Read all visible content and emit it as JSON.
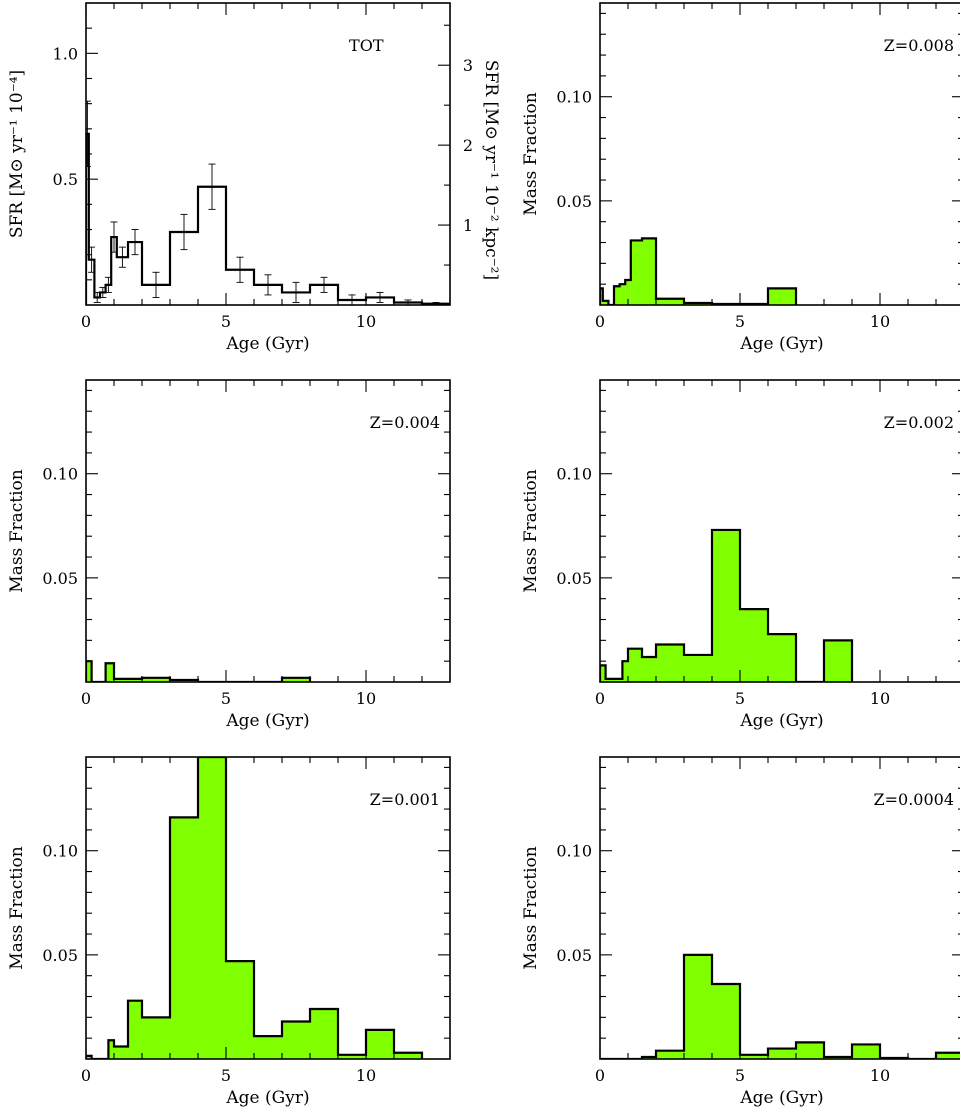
{
  "colors": {
    "fill": "#80ff00",
    "line": "#000000"
  },
  "chart_data": [
    {
      "id": "TOT",
      "type": "bar",
      "label": "TOT",
      "xlabel": "Age (Gyr)",
      "ylabel": "SFR [M⊙ yr⁻¹ 10⁻⁴]",
      "ylabel_right": "SFR [M⊙ yr⁻¹ 10⁻² kpc⁻²]",
      "xlim": [
        0,
        13
      ],
      "ylim": [
        0,
        1.2
      ],
      "xticks": [
        0,
        5,
        10
      ],
      "yticks": [
        0.5,
        1.0
      ],
      "yticklabels": [
        "0.5",
        "1.0"
      ],
      "right_ticks": [
        1,
        2,
        3
      ],
      "right_scale": 0.3176,
      "filled": false,
      "bins": [
        {
          "x0": 0.0,
          "x1": 0.1,
          "v": 0.68,
          "e": 0.13
        },
        {
          "x0": 0.1,
          "x1": 0.3,
          "v": 0.18,
          "e": 0.05
        },
        {
          "x0": 0.3,
          "x1": 0.5,
          "v": 0.03,
          "e": 0.02
        },
        {
          "x0": 0.5,
          "x1": 0.7,
          "v": 0.05,
          "e": 0.02
        },
        {
          "x0": 0.7,
          "x1": 0.9,
          "v": 0.08,
          "e": 0.03
        },
        {
          "x0": 0.9,
          "x1": 1.1,
          "v": 0.27,
          "e": 0.06
        },
        {
          "x0": 1.1,
          "x1": 1.5,
          "v": 0.19,
          "e": 0.04
        },
        {
          "x0": 1.5,
          "x1": 2.0,
          "v": 0.25,
          "e": 0.05
        },
        {
          "x0": 2.0,
          "x1": 3.0,
          "v": 0.08,
          "e": 0.05
        },
        {
          "x0": 3.0,
          "x1": 4.0,
          "v": 0.29,
          "e": 0.07
        },
        {
          "x0": 4.0,
          "x1": 5.0,
          "v": 0.47,
          "e": 0.09
        },
        {
          "x0": 5.0,
          "x1": 6.0,
          "v": 0.14,
          "e": 0.05
        },
        {
          "x0": 6.0,
          "x1": 7.0,
          "v": 0.08,
          "e": 0.04
        },
        {
          "x0": 7.0,
          "x1": 8.0,
          "v": 0.05,
          "e": 0.04
        },
        {
          "x0": 8.0,
          "x1": 9.0,
          "v": 0.08,
          "e": 0.03
        },
        {
          "x0": 9.0,
          "x1": 10.0,
          "v": 0.02,
          "e": 0.02
        },
        {
          "x0": 10.0,
          "x1": 11.0,
          "v": 0.03,
          "e": 0.02
        },
        {
          "x0": 11.0,
          "x1": 12.0,
          "v": 0.01,
          "e": 0.01
        },
        {
          "x0": 12.0,
          "x1": 13.0,
          "v": 0.005,
          "e": 0.005
        }
      ]
    },
    {
      "id": "z0008",
      "type": "bar",
      "label": "Z=0.008",
      "xlabel": "Age (Gyr)",
      "ylabel": "Mass Fraction",
      "xlim": [
        0,
        13
      ],
      "ylim": [
        0,
        0.145
      ],
      "xticks": [
        0,
        5,
        10
      ],
      "yticks": [
        0.05,
        0.1
      ],
      "yticklabels": [
        "0.05",
        "0.10"
      ],
      "filled": true,
      "bins": [
        {
          "x0": 0.0,
          "x1": 0.1,
          "v": 0.008
        },
        {
          "x0": 0.1,
          "x1": 0.3,
          "v": 0.002
        },
        {
          "x0": 0.3,
          "x1": 0.5,
          "v": 0.0
        },
        {
          "x0": 0.5,
          "x1": 0.7,
          "v": 0.009
        },
        {
          "x0": 0.7,
          "x1": 0.9,
          "v": 0.01
        },
        {
          "x0": 0.9,
          "x1": 1.1,
          "v": 0.012
        },
        {
          "x0": 1.1,
          "x1": 1.5,
          "v": 0.031
        },
        {
          "x0": 1.5,
          "x1": 2.0,
          "v": 0.032
        },
        {
          "x0": 2.0,
          "x1": 3.0,
          "v": 0.003
        },
        {
          "x0": 3.0,
          "x1": 4.0,
          "v": 0.001
        },
        {
          "x0": 4.0,
          "x1": 5.0,
          "v": 0.0005
        },
        {
          "x0": 5.0,
          "x1": 6.0,
          "v": 0.0005
        },
        {
          "x0": 6.0,
          "x1": 7.0,
          "v": 0.008
        }
      ]
    },
    {
      "id": "z0004",
      "type": "bar",
      "label": "Z=0.004",
      "xlabel": "Age (Gyr)",
      "ylabel": "Mass Fraction",
      "xlim": [
        0,
        13
      ],
      "ylim": [
        0,
        0.145
      ],
      "xticks": [
        0,
        5,
        10
      ],
      "yticks": [
        0.05,
        0.1
      ],
      "yticklabels": [
        "0.05",
        "0.10"
      ],
      "filled": true,
      "bins": [
        {
          "x0": 0.0,
          "x1": 0.2,
          "v": 0.01
        },
        {
          "x0": 0.2,
          "x1": 0.7,
          "v": 0.0
        },
        {
          "x0": 0.7,
          "x1": 1.0,
          "v": 0.009
        },
        {
          "x0": 1.0,
          "x1": 2.0,
          "v": 0.0015
        },
        {
          "x0": 2.0,
          "x1": 3.0,
          "v": 0.002
        },
        {
          "x0": 3.0,
          "x1": 4.0,
          "v": 0.001
        },
        {
          "x0": 4.0,
          "x1": 7.0,
          "v": 0.0
        },
        {
          "x0": 7.0,
          "x1": 8.0,
          "v": 0.002
        }
      ]
    },
    {
      "id": "z0002",
      "type": "bar",
      "label": "Z=0.002",
      "xlabel": "Age (Gyr)",
      "ylabel": "Mass Fraction",
      "xlim": [
        0,
        13
      ],
      "ylim": [
        0,
        0.145
      ],
      "xticks": [
        0,
        5,
        10
      ],
      "yticks": [
        0.05,
        0.1
      ],
      "yticklabels": [
        "0.05",
        "0.10"
      ],
      "filled": true,
      "bins": [
        {
          "x0": 0.0,
          "x1": 0.2,
          "v": 0.008
        },
        {
          "x0": 0.2,
          "x1": 0.8,
          "v": 0.0015
        },
        {
          "x0": 0.8,
          "x1": 1.0,
          "v": 0.01
        },
        {
          "x0": 1.0,
          "x1": 1.5,
          "v": 0.016
        },
        {
          "x0": 1.5,
          "x1": 2.0,
          "v": 0.012
        },
        {
          "x0": 2.0,
          "x1": 3.0,
          "v": 0.018
        },
        {
          "x0": 3.0,
          "x1": 4.0,
          "v": 0.013
        },
        {
          "x0": 4.0,
          "x1": 5.0,
          "v": 0.073
        },
        {
          "x0": 5.0,
          "x1": 6.0,
          "v": 0.035
        },
        {
          "x0": 6.0,
          "x1": 7.0,
          "v": 0.023
        },
        {
          "x0": 7.0,
          "x1": 8.0,
          "v": 0.0
        },
        {
          "x0": 8.0,
          "x1": 9.0,
          "v": 0.02
        }
      ]
    },
    {
      "id": "z0001",
      "type": "bar",
      "label": "Z=0.001",
      "xlabel": "Age (Gyr)",
      "ylabel": "Mass Fraction",
      "xlim": [
        0,
        13
      ],
      "ylim": [
        0,
        0.145
      ],
      "xticks": [
        0,
        5,
        10
      ],
      "yticks": [
        0.05,
        0.1
      ],
      "yticklabels": [
        "0.05",
        "0.10"
      ],
      "filled": true,
      "bins": [
        {
          "x0": 0.0,
          "x1": 0.2,
          "v": 0.0015
        },
        {
          "x0": 0.2,
          "x1": 0.8,
          "v": 0.0
        },
        {
          "x0": 0.8,
          "x1": 1.0,
          "v": 0.009
        },
        {
          "x0": 1.0,
          "x1": 1.5,
          "v": 0.006
        },
        {
          "x0": 1.5,
          "x1": 2.0,
          "v": 0.028
        },
        {
          "x0": 2.0,
          "x1": 3.0,
          "v": 0.02
        },
        {
          "x0": 3.0,
          "x1": 4.0,
          "v": 0.116
        },
        {
          "x0": 4.0,
          "x1": 5.0,
          "v": 0.16
        },
        {
          "x0": 5.0,
          "x1": 6.0,
          "v": 0.047
        },
        {
          "x0": 6.0,
          "x1": 7.0,
          "v": 0.011
        },
        {
          "x0": 7.0,
          "x1": 8.0,
          "v": 0.018
        },
        {
          "x0": 8.0,
          "x1": 9.0,
          "v": 0.024
        },
        {
          "x0": 9.0,
          "x1": 10.0,
          "v": 0.002
        },
        {
          "x0": 10.0,
          "x1": 11.0,
          "v": 0.014
        },
        {
          "x0": 11.0,
          "x1": 12.0,
          "v": 0.003
        }
      ]
    },
    {
      "id": "z00004",
      "type": "bar",
      "label": "Z=0.0004",
      "xlabel": "Age (Gyr)",
      "ylabel": "Mass Fraction",
      "xlim": [
        0,
        13
      ],
      "ylim": [
        0,
        0.145
      ],
      "xticks": [
        0,
        5,
        10
      ],
      "yticks": [
        0.05,
        0.1
      ],
      "yticklabels": [
        "0.05",
        "0.10"
      ],
      "filled": true,
      "bins": [
        {
          "x0": 0.0,
          "x1": 1.5,
          "v": 0.0
        },
        {
          "x0": 1.5,
          "x1": 2.0,
          "v": 0.001
        },
        {
          "x0": 2.0,
          "x1": 3.0,
          "v": 0.004
        },
        {
          "x0": 3.0,
          "x1": 4.0,
          "v": 0.05
        },
        {
          "x0": 4.0,
          "x1": 5.0,
          "v": 0.036
        },
        {
          "x0": 5.0,
          "x1": 6.0,
          "v": 0.002
        },
        {
          "x0": 6.0,
          "x1": 7.0,
          "v": 0.005
        },
        {
          "x0": 7.0,
          "x1": 8.0,
          "v": 0.008
        },
        {
          "x0": 8.0,
          "x1": 9.0,
          "v": 0.001
        },
        {
          "x0": 9.0,
          "x1": 10.0,
          "v": 0.007
        },
        {
          "x0": 10.0,
          "x1": 11.0,
          "v": 0.0005
        },
        {
          "x0": 11.0,
          "x1": 12.0,
          "v": 0.0
        },
        {
          "x0": 12.0,
          "x1": 13.0,
          "v": 0.003
        }
      ]
    }
  ]
}
